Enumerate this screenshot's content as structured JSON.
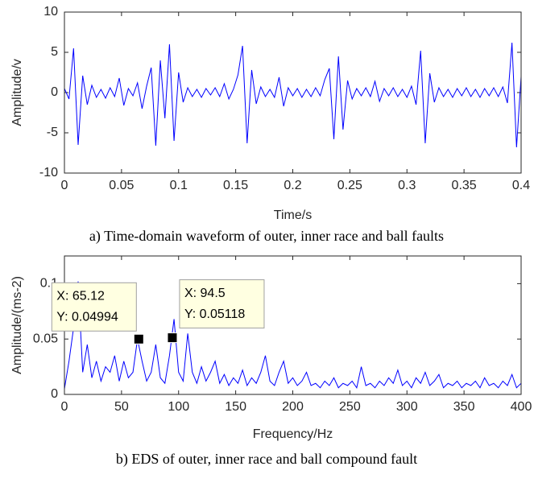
{
  "chart_data": [
    {
      "type": "line",
      "xlabel": "Time/s",
      "ylabel": "Amplitude/v",
      "caption": "a) Time-domain waveform of outer, inner race and ball faults",
      "xlim": [
        0,
        0.4
      ],
      "ylim": [
        -10,
        10
      ],
      "xticks": [
        0,
        0.05,
        0.1,
        0.15,
        0.2,
        0.25,
        0.3,
        0.35,
        0.4
      ],
      "yticks": [
        -10,
        -5,
        0,
        5,
        10
      ],
      "x": [
        0,
        0.004,
        0.008,
        0.012,
        0.016,
        0.02,
        0.024,
        0.028,
        0.032,
        0.036,
        0.04,
        0.044,
        0.048,
        0.052,
        0.056,
        0.06,
        0.064,
        0.068,
        0.072,
        0.076,
        0.08,
        0.084,
        0.088,
        0.092,
        0.096,
        0.1,
        0.104,
        0.108,
        0.112,
        0.116,
        0.12,
        0.124,
        0.128,
        0.132,
        0.136,
        0.14,
        0.144,
        0.148,
        0.152,
        0.156,
        0.16,
        0.164,
        0.168,
        0.172,
        0.176,
        0.18,
        0.184,
        0.188,
        0.192,
        0.196,
        0.2,
        0.204,
        0.208,
        0.212,
        0.216,
        0.22,
        0.224,
        0.228,
        0.232,
        0.236,
        0.24,
        0.244,
        0.248,
        0.252,
        0.256,
        0.26,
        0.264,
        0.268,
        0.272,
        0.276,
        0.28,
        0.284,
        0.288,
        0.292,
        0.296,
        0.3,
        0.304,
        0.308,
        0.312,
        0.316,
        0.32,
        0.324,
        0.328,
        0.332,
        0.336,
        0.34,
        0.344,
        0.348,
        0.352,
        0.356,
        0.36,
        0.364,
        0.368,
        0.372,
        0.376,
        0.38,
        0.384,
        0.388,
        0.392,
        0.396,
        0.4
      ],
      "series": [
        {
          "color": "#0000ff",
          "values": [
            0.5,
            -0.8,
            5.5,
            -6.5,
            2.1,
            -1.5,
            0.9,
            -0.6,
            0.4,
            -0.7,
            0.6,
            -0.5,
            1.8,
            -1.6,
            0.5,
            -0.4,
            1.2,
            -2.0,
            0.8,
            3.1,
            -6.6,
            4.0,
            -3.2,
            6.0,
            -6.0,
            2.5,
            -1.2,
            0.6,
            -0.5,
            0.4,
            -0.6,
            0.5,
            -0.3,
            0.6,
            -0.5,
            1.1,
            -0.8,
            0.4,
            2.2,
            5.8,
            -6.3,
            2.8,
            -1.4,
            0.7,
            -0.5,
            0.4,
            -0.6,
            1.9,
            -1.7,
            0.6,
            -0.4,
            0.5,
            -0.6,
            0.4,
            -0.5,
            0.6,
            -0.4,
            1.6,
            3.0,
            -5.8,
            4.5,
            -4.6,
            1.5,
            -0.8,
            0.5,
            -0.4,
            0.6,
            -0.5,
            1.4,
            -1.1,
            0.5,
            -0.4,
            0.6,
            -0.5,
            0.4,
            -0.6,
            0.8,
            -1.5,
            5.2,
            -6.3,
            2.4,
            -1.2,
            0.6,
            -0.5,
            0.4,
            -0.6,
            0.5,
            -0.4,
            0.6,
            -0.5,
            0.4,
            -0.6,
            0.5,
            -0.4,
            0.6,
            -0.5,
            0.7,
            -1.3,
            6.2,
            -6.8,
            2.0
          ]
        }
      ]
    },
    {
      "type": "line",
      "xlabel": "Frequency/Hz",
      "ylabel": "Amplitude/(ms-2)",
      "caption": "b) EDS of outer, inner race and ball compound fault",
      "xlim": [
        0,
        400
      ],
      "ylim": [
        0,
        0.125
      ],
      "xticks": [
        0,
        50,
        100,
        150,
        200,
        250,
        300,
        350,
        400
      ],
      "yticks": [
        0,
        0.05,
        0.1
      ],
      "x": [
        0,
        4,
        8,
        12,
        16,
        20,
        24,
        28,
        32,
        36,
        40,
        44,
        48,
        52,
        56,
        60,
        64,
        68,
        72,
        76,
        80,
        84,
        88,
        92,
        96,
        100,
        104,
        108,
        112,
        116,
        120,
        124,
        128,
        132,
        136,
        140,
        144,
        148,
        152,
        156,
        160,
        164,
        168,
        172,
        176,
        180,
        184,
        188,
        192,
        196,
        200,
        204,
        208,
        212,
        216,
        220,
        224,
        228,
        232,
        236,
        240,
        244,
        248,
        252,
        256,
        260,
        264,
        268,
        272,
        276,
        280,
        284,
        288,
        292,
        296,
        300,
        304,
        308,
        312,
        316,
        320,
        324,
        328,
        332,
        336,
        340,
        344,
        348,
        352,
        356,
        360,
        364,
        368,
        372,
        376,
        380,
        384,
        388,
        392,
        396,
        400
      ],
      "series": [
        {
          "color": "#0000ff",
          "values": [
            0.005,
            0.03,
            0.06,
            0.102,
            0.02,
            0.045,
            0.015,
            0.03,
            0.012,
            0.025,
            0.02,
            0.035,
            0.012,
            0.03,
            0.015,
            0.02,
            0.05,
            0.03,
            0.012,
            0.02,
            0.045,
            0.015,
            0.01,
            0.035,
            0.068,
            0.02,
            0.012,
            0.055,
            0.02,
            0.01,
            0.025,
            0.012,
            0.02,
            0.03,
            0.01,
            0.018,
            0.008,
            0.015,
            0.01,
            0.022,
            0.008,
            0.015,
            0.01,
            0.02,
            0.035,
            0.012,
            0.008,
            0.02,
            0.03,
            0.01,
            0.015,
            0.008,
            0.012,
            0.02,
            0.008,
            0.01,
            0.006,
            0.012,
            0.008,
            0.015,
            0.006,
            0.01,
            0.008,
            0.012,
            0.006,
            0.025,
            0.008,
            0.01,
            0.006,
            0.012,
            0.008,
            0.015,
            0.01,
            0.022,
            0.008,
            0.012,
            0.006,
            0.015,
            0.01,
            0.02,
            0.008,
            0.012,
            0.018,
            0.006,
            0.01,
            0.008,
            0.012,
            0.006,
            0.01,
            0.008,
            0.012,
            0.006,
            0.015,
            0.008,
            0.01,
            0.006,
            0.012,
            0.008,
            0.018,
            0.006,
            0.01
          ]
        }
      ],
      "datatips": [
        {
          "x": 65.12,
          "y": 0.04994,
          "label_x": "X: 65.12",
          "label_y": "Y: 0.04994"
        },
        {
          "x": 94.5,
          "y": 0.05118,
          "label_x": "X: 94.5",
          "label_y": "Y: 0.05118"
        }
      ]
    }
  ]
}
